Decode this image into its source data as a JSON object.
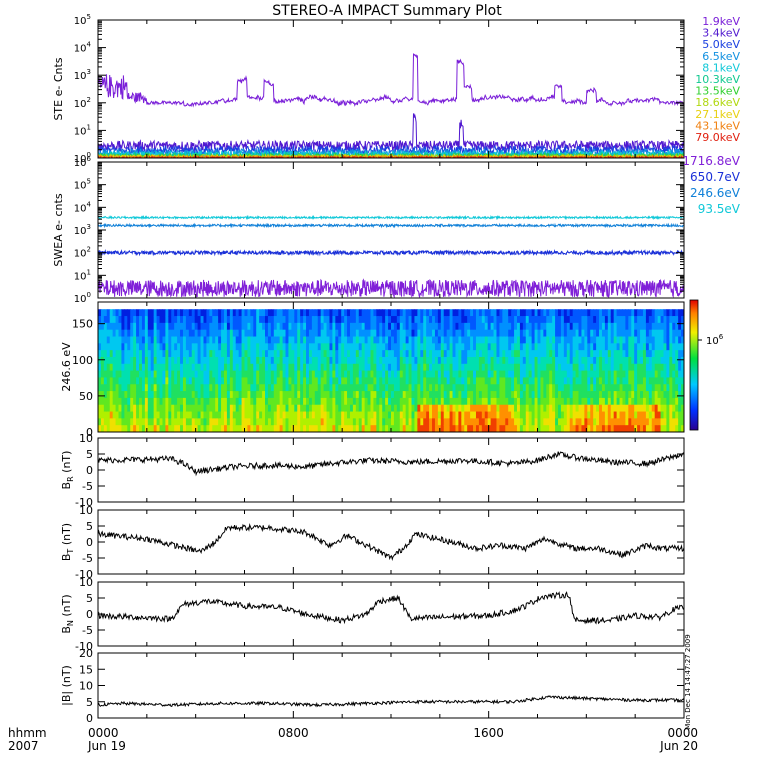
{
  "title": "STEREO-A IMPACT Summary Plot",
  "side_stamp": "Mon Dec 14 14:47:27 2009",
  "time_axis": {
    "corner_top": "hhmm",
    "corner_bottom": "2007",
    "ticks": [
      {
        "hours": 0,
        "label": "0000",
        "sublabel": "Jun 19"
      },
      {
        "hours": 8,
        "label": "0800",
        "sublabel": ""
      },
      {
        "hours": 16,
        "label": "1600",
        "sublabel": ""
      },
      {
        "hours": 24,
        "label": "0000",
        "sublabel": "Jun 20"
      }
    ],
    "range_hours": [
      0,
      24
    ]
  },
  "chart_data": [
    {
      "id": "ste",
      "type": "line",
      "ylabel": "STE e- Cnts",
      "yscale": "log",
      "ylim_exp": [
        0,
        5
      ],
      "y_tick_labels": [
        "10^0",
        "10^1",
        "10^2",
        "10^3",
        "10^4",
        "10^5"
      ],
      "legend": [
        {
          "name": "1.9keV",
          "color": "#7a1fd8"
        },
        {
          "name": "3.4keV",
          "color": "#5018d0"
        },
        {
          "name": "5.0keV",
          "color": "#1a40e0"
        },
        {
          "name": "6.5keV",
          "color": "#1090e0"
        },
        {
          "name": "8.1keV",
          "color": "#10c8d8"
        },
        {
          "name": "10.3keV",
          "color": "#10c890"
        },
        {
          "name": "13.5keV",
          "color": "#30d030"
        },
        {
          "name": "18.6keV",
          "color": "#b0d810"
        },
        {
          "name": "27.1keV",
          "color": "#e8d010"
        },
        {
          "name": "43.1keV",
          "color": "#f08010"
        },
        {
          "name": "79.0keV",
          "color": "#e02010"
        }
      ]
    },
    {
      "id": "swea",
      "type": "line",
      "ylabel": "SWEA e- cnts",
      "yscale": "log",
      "ylim_exp": [
        0,
        6
      ],
      "y_tick_labels": [
        "10^0",
        "10^1",
        "10^2",
        "10^3",
        "10^4",
        "10^5",
        "10^6"
      ],
      "legend": [
        {
          "name": "1716.8eV",
          "color": "#8020d8"
        },
        {
          "name": "650.7eV",
          "color": "#1a30d8"
        },
        {
          "name": "246.6eV",
          "color": "#1080d8"
        },
        {
          "name": "93.5eV",
          "color": "#10c8d8"
        }
      ]
    },
    {
      "id": "pad",
      "type": "heatmap",
      "ylabel": "246.6 eV",
      "ylim": [
        0,
        180
      ],
      "y_ticks": [
        "0",
        "50",
        "100",
        "150"
      ],
      "colorbar_label": "10^6"
    },
    {
      "id": "br",
      "type": "line",
      "ylabel": "B_R (nT)",
      "ylim": [
        -10,
        10
      ],
      "y_ticks": [
        "10",
        "5",
        "0",
        "-5",
        "-10"
      ]
    },
    {
      "id": "bt",
      "type": "line",
      "ylabel": "B_T (nT)",
      "ylim": [
        -10,
        10
      ],
      "y_ticks": [
        "10",
        "5",
        "0",
        "-5",
        "-10"
      ]
    },
    {
      "id": "bn",
      "type": "line",
      "ylabel": "B_N (nT)",
      "ylim": [
        -10,
        10
      ],
      "y_ticks": [
        "10",
        "5",
        "0",
        "-5",
        "-10"
      ]
    },
    {
      "id": "bmag",
      "type": "line",
      "ylabel": "|B| (nT)",
      "ylim": [
        0,
        20
      ],
      "y_ticks": [
        "20",
        "15",
        "10",
        "5",
        "0"
      ]
    }
  ]
}
